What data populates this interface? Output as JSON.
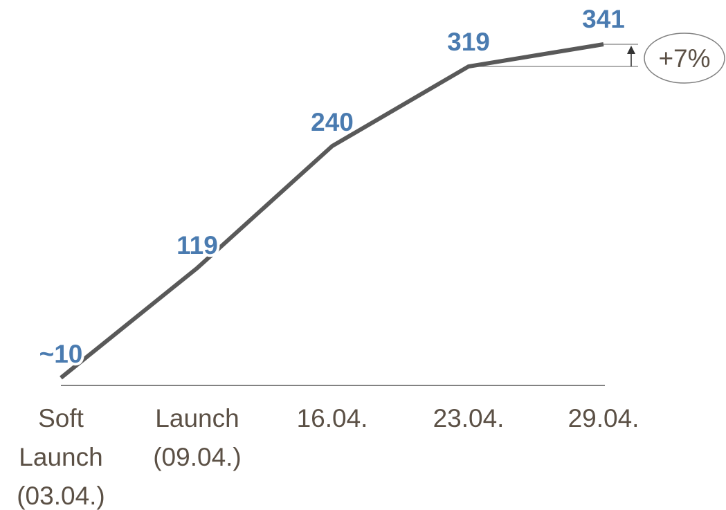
{
  "chart_data": {
    "type": "line",
    "categories": [
      [
        "Soft",
        "Launch",
        "(03.04.)"
      ],
      [
        "Launch",
        "(09.04.)"
      ],
      [
        "16.04."
      ],
      [
        "23.04."
      ],
      [
        "29.04."
      ]
    ],
    "values": [
      10,
      119,
      240,
      319,
      341
    ],
    "data_labels": [
      "~10",
      "119",
      "240",
      "319",
      "341"
    ],
    "title": "",
    "xlabel": "",
    "ylabel": "",
    "ylim": [
      0,
      341
    ],
    "grid": false,
    "legend": "none",
    "annotation": {
      "text": "+7%",
      "from_index": 3,
      "to_index": 4
    },
    "colors": {
      "line": "#595959",
      "data_label": "#4a7bb0",
      "tick_label": "#5b5045",
      "axis": "#595959",
      "annotation": "#5b5045",
      "guide": "#7f7f7f"
    }
  }
}
